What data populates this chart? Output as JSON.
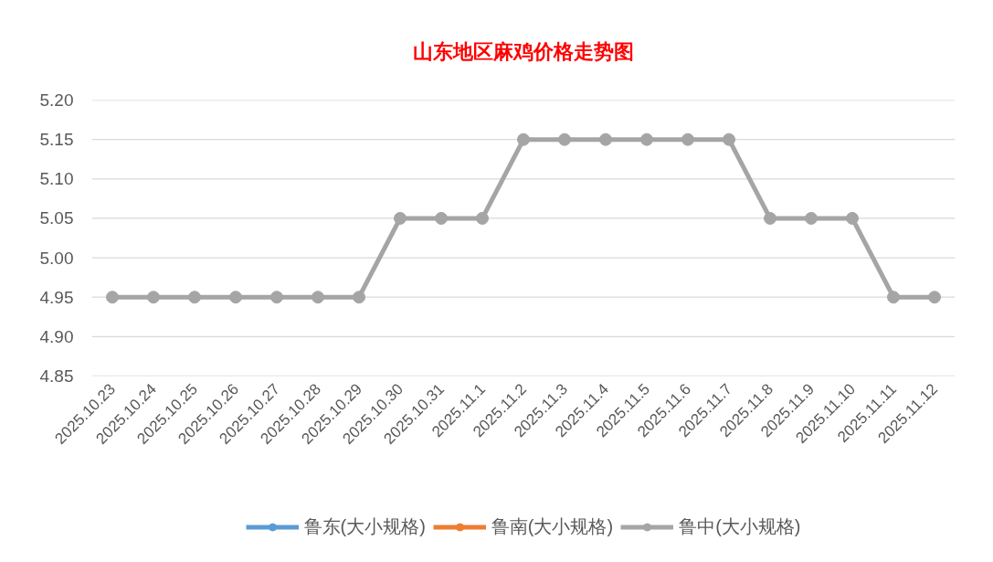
{
  "chart_data": {
    "type": "line",
    "title": "山东地区麻鸡价格走势图",
    "categories": [
      "2025.10.23",
      "2025.10.24",
      "2025.10.25",
      "2025.10.26",
      "2025.10.27",
      "2025.10.28",
      "2025.10.29",
      "2025.10.30",
      "2025.10.31",
      "2025.11.1",
      "2025.11.2",
      "2025.11.3",
      "2025.11.4",
      "2025.11.5",
      "2025.11.6",
      "2025.11.7",
      "2025.11.8",
      "2025.11.9",
      "2025.11.10",
      "2025.11.11",
      "2025.11.12"
    ],
    "series": [
      {
        "name": "鲁东(大小规格)",
        "color": "#5b9bd5",
        "values": [
          null,
          null,
          null,
          null,
          null,
          null,
          null,
          null,
          null,
          null,
          null,
          null,
          null,
          null,
          null,
          null,
          null,
          null,
          null,
          null,
          null
        ]
      },
      {
        "name": "鲁南(大小规格)",
        "color": "#ed7d31",
        "values": [
          null,
          null,
          null,
          null,
          null,
          null,
          null,
          null,
          null,
          null,
          null,
          null,
          null,
          null,
          null,
          null,
          null,
          null,
          null,
          null,
          null
        ]
      },
      {
        "name": "鲁中(大小规格)",
        "color": "#a5a5a5",
        "values": [
          4.95,
          4.95,
          4.95,
          4.95,
          4.95,
          4.95,
          4.95,
          5.05,
          5.05,
          5.05,
          5.15,
          5.15,
          5.15,
          5.15,
          5.15,
          5.15,
          5.05,
          5.05,
          5.05,
          4.95,
          4.95
        ]
      }
    ],
    "ylim": [
      4.85,
      5.2
    ],
    "yticks": [
      {
        "value": 4.85,
        "label": "4.85"
      },
      {
        "value": 4.9,
        "label": "4.90"
      },
      {
        "value": 4.95,
        "label": "4.95"
      },
      {
        "value": 5.0,
        "label": "5.00"
      },
      {
        "value": 5.05,
        "label": "5.05"
      },
      {
        "value": 5.1,
        "label": "5.10"
      },
      {
        "value": 5.15,
        "label": "5.15"
      },
      {
        "value": 5.2,
        "label": "5.20"
      }
    ],
    "grid": "y",
    "legend": "bottom",
    "marker": "circle",
    "line_style": "solid"
  }
}
